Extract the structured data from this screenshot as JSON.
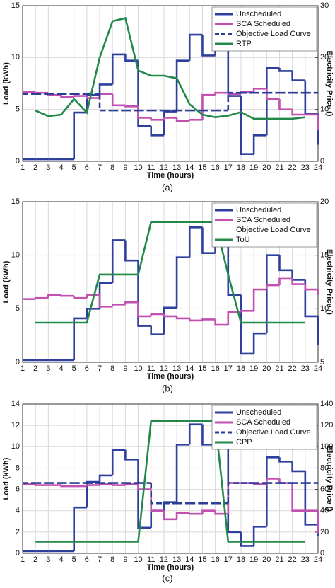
{
  "chart_data": [
    {
      "type": "line",
      "caption": "(a)",
      "x_label": "Time (hours)",
      "y_label": "Load (kWh)",
      "y2_label": "Electricity Price ()",
      "x": [
        1,
        2,
        3,
        4,
        5,
        6,
        7,
        8,
        9,
        10,
        11,
        12,
        13,
        14,
        15,
        16,
        17,
        18,
        19,
        20,
        21,
        22,
        23,
        24
      ],
      "xlim": [
        1,
        24
      ],
      "xticks": [
        1,
        2,
        3,
        4,
        5,
        6,
        7,
        8,
        9,
        10,
        11,
        12,
        13,
        14,
        15,
        16,
        17,
        18,
        19,
        20,
        21,
        22,
        23,
        24
      ],
      "ylim": [
        0,
        15
      ],
      "yticks": [
        0,
        5,
        10,
        15
      ],
      "y2lim": [
        0,
        30
      ],
      "y2ticks": [
        0,
        10,
        20,
        30
      ],
      "grid": true,
      "legend": "upper right",
      "series": [
        {
          "name": "Unscheduled",
          "color": "#2e3f9e",
          "style": "step",
          "values": [
            0.2,
            0.2,
            0.2,
            0.2,
            4.7,
            6.4,
            7.4,
            10.3,
            9.7,
            3.4,
            2.5,
            4.8,
            9.7,
            12.2,
            10.2,
            10.9,
            6.3,
            0.7,
            2.5,
            9.0,
            8.7,
            7.8,
            4.6,
            1.6
          ]
        },
        {
          "name": "SCA Scheduled",
          "color": "#c250b0",
          "style": "step",
          "values": [
            6.7,
            6.6,
            6.4,
            6.2,
            6.3,
            6.1,
            6.5,
            5.4,
            5.3,
            4.2,
            4.0,
            4.2,
            3.9,
            4.0,
            6.4,
            6.6,
            6.5,
            6.7,
            7.0,
            6.0,
            5.0,
            4.5,
            4.5,
            3.0
          ]
        },
        {
          "name": "Objective Load Curve",
          "color": "#2a3c95",
          "style": "step",
          "dash": true,
          "values": [
            6.5,
            6.5,
            6.5,
            6.5,
            6.5,
            6.5,
            4.9,
            4.9,
            4.9,
            4.9,
            4.9,
            4.9,
            4.9,
            4.9,
            4.9,
            4.9,
            6.6,
            6.6,
            6.6,
            6.6,
            6.6,
            6.6,
            6.6,
            6.6
          ]
        },
        {
          "name": "RTP",
          "color": "#23894a",
          "style": "line",
          "axis": "y2",
          "values": [
            null,
            9.8,
            8.7,
            9.0,
            12.0,
            9.4,
            20.0,
            27.0,
            27.6,
            17.5,
            16.5,
            16.5,
            16.0,
            11.0,
            9.0,
            8.5,
            8.8,
            9.5,
            8.2,
            8.2,
            8.2,
            8.2,
            8.5,
            null
          ]
        }
      ]
    },
    {
      "type": "line",
      "caption": "(b)",
      "x_label": "Time (hours)",
      "y_label": "Load (kWh)",
      "y2_label": "Electricity Price ()",
      "x": [
        1,
        2,
        3,
        4,
        5,
        6,
        7,
        8,
        9,
        10,
        11,
        12,
        13,
        14,
        15,
        16,
        17,
        18,
        19,
        20,
        21,
        22,
        23,
        24
      ],
      "xlim": [
        1,
        24
      ],
      "xticks": [
        1,
        2,
        3,
        4,
        5,
        6,
        7,
        8,
        9,
        10,
        11,
        12,
        13,
        14,
        15,
        16,
        17,
        18,
        19,
        20,
        21,
        22,
        23,
        24
      ],
      "ylim": [
        0,
        15
      ],
      "yticks": [
        0,
        5,
        10,
        15
      ],
      "y2lim": [
        5,
        20
      ],
      "y2ticks": [
        5,
        10,
        15,
        20
      ],
      "grid": true,
      "legend": "upper right",
      "series": [
        {
          "name": "Unscheduled",
          "color": "#2e3f9e",
          "style": "step",
          "values": [
            0.2,
            0.2,
            0.2,
            0.2,
            4.1,
            5.0,
            7.4,
            11.4,
            9.5,
            3.4,
            2.6,
            5.1,
            9.8,
            12.6,
            10.2,
            11.0,
            6.3,
            0.8,
            2.7,
            10.0,
            8.6,
            7.7,
            4.3,
            1.6
          ]
        },
        {
          "name": "SCA Scheduled",
          "color": "#c250b0",
          "style": "step",
          "values": [
            5.9,
            6.0,
            6.3,
            6.2,
            6.0,
            6.3,
            5.2,
            5.4,
            5.6,
            4.3,
            4.5,
            4.3,
            4.1,
            3.9,
            4.0,
            3.5,
            4.7,
            4.8,
            6.8,
            7.2,
            7.8,
            7.3,
            6.8,
            6.3
          ]
        },
        {
          "name": "Objective Load Curve",
          "color": null,
          "style": "step",
          "values": [
            null,
            null,
            null,
            null,
            null,
            null,
            null,
            null,
            null,
            null,
            null,
            null,
            null,
            null,
            null,
            null,
            null,
            null,
            null,
            null,
            null,
            null,
            null,
            null
          ]
        },
        {
          "name": "ToU",
          "color": "#23894a",
          "style": "line",
          "axis": "y2",
          "values": [
            null,
            8.7,
            8.7,
            8.7,
            8.7,
            8.7,
            13.2,
            13.2,
            13.2,
            13.2,
            18.1,
            18.1,
            18.1,
            18.1,
            18.1,
            18.1,
            13.2,
            8.7,
            8.7,
            8.7,
            8.7,
            8.7,
            8.7,
            null
          ]
        }
      ]
    },
    {
      "type": "line",
      "caption": "(c)",
      "x_label": "Time (hours)",
      "y_label": "Load (kWh)",
      "y2_label": "Electricity Price ()",
      "x": [
        1,
        2,
        3,
        4,
        5,
        6,
        7,
        8,
        9,
        10,
        11,
        12,
        13,
        14,
        15,
        16,
        17,
        18,
        19,
        20,
        21,
        22,
        23,
        24
      ],
      "xlim": [
        1,
        24
      ],
      "xticks": [
        1,
        2,
        3,
        4,
        5,
        6,
        7,
        8,
        9,
        10,
        11,
        12,
        13,
        14,
        15,
        16,
        17,
        18,
        19,
        20,
        21,
        22,
        23,
        24
      ],
      "ylim": [
        0,
        14
      ],
      "yticks": [
        0,
        2,
        4,
        6,
        8,
        10,
        12,
        14
      ],
      "y2lim": [
        0,
        140
      ],
      "y2ticks": [
        0,
        20,
        40,
        60,
        80,
        100,
        120,
        140
      ],
      "grid": true,
      "legend": "upper right",
      "series": [
        {
          "name": "Unscheduled",
          "color": "#2e3f9e",
          "style": "step",
          "values": [
            0.2,
            0.2,
            0.2,
            0.2,
            4.3,
            6.7,
            7.3,
            9.7,
            8.8,
            2.4,
            4.0,
            4.8,
            10.2,
            12.1,
            10.2,
            11.0,
            2.0,
            0.7,
            2.5,
            9.0,
            8.6,
            7.7,
            2.7,
            1.6
          ]
        },
        {
          "name": "SCA Scheduled",
          "color": "#c250b0",
          "style": "step",
          "values": [
            6.5,
            6.4,
            6.4,
            6.3,
            6.3,
            6.4,
            6.5,
            6.4,
            6.5,
            6.0,
            4.0,
            3.2,
            3.8,
            3.7,
            4.0,
            3.7,
            6.6,
            6.6,
            6.5,
            7.0,
            6.6,
            4.0,
            4.0,
            1.9
          ]
        },
        {
          "name": "Objective Load Curve",
          "color": "#2a3c95",
          "style": "step",
          "dash": true,
          "values": [
            6.6,
            6.6,
            6.6,
            6.6,
            6.6,
            6.6,
            6.6,
            6.6,
            6.6,
            6.6,
            4.7,
            4.7,
            4.7,
            4.7,
            4.7,
            4.7,
            6.6,
            6.6,
            6.6,
            6.6,
            6.6,
            6.6,
            6.6,
            6.6
          ]
        },
        {
          "name": "CPP",
          "color": "#23894a",
          "style": "line",
          "axis": "y2",
          "values": [
            null,
            11,
            11,
            11,
            11,
            11,
            11,
            11,
            11,
            11,
            124,
            124,
            124,
            124,
            124,
            124,
            11,
            11,
            11,
            11,
            11,
            11,
            11,
            null
          ]
        }
      ]
    }
  ]
}
